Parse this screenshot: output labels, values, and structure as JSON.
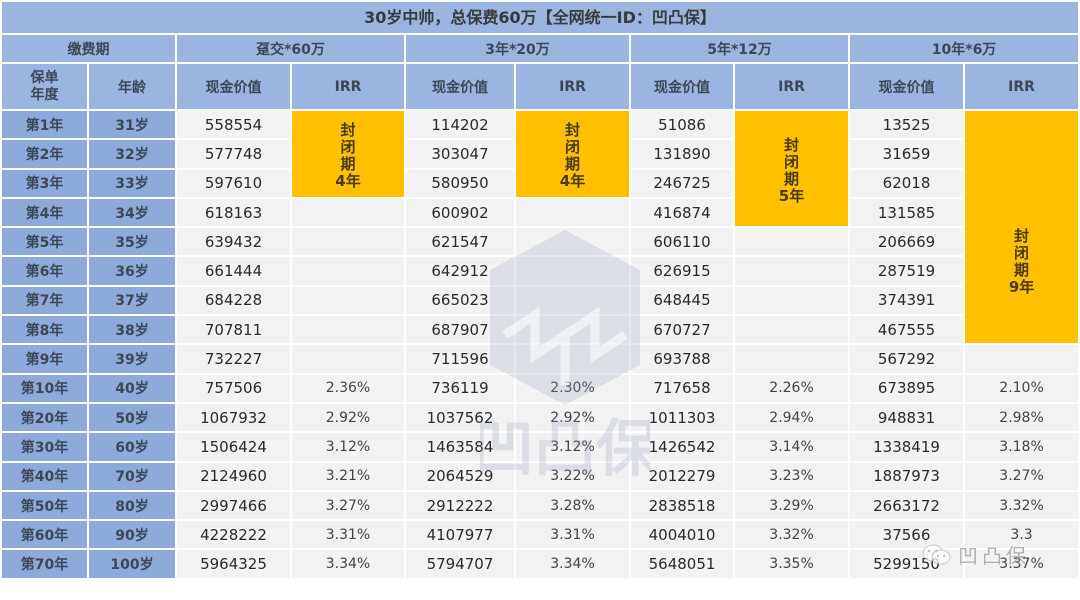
{
  "title": "30岁中帅，总保费60万【全网统一ID：凹凸保】",
  "header": {
    "payment_period_label": "缴费期",
    "policy_year_label": "保单\n年度",
    "age_label": "年龄",
    "plans": [
      {
        "name": "趸交*60万",
        "cash_value_label": "现金价值",
        "irr_label": "IRR"
      },
      {
        "name": "3年*20万",
        "cash_value_label": "现金价值",
        "irr_label": "IRR"
      },
      {
        "name": "5年*12万",
        "cash_value_label": "现金价值",
        "irr_label": "IRR"
      },
      {
        "name": "10年*6万",
        "cash_value_label": "现金价值",
        "irr_label": "IRR"
      }
    ]
  },
  "lockup_labels": {
    "plan0": [
      "封",
      "闭",
      "期",
      "4年"
    ],
    "plan1": [
      "封",
      "闭",
      "期",
      "4年"
    ],
    "plan2": [
      "封",
      "闭",
      "期",
      "5年"
    ],
    "plan3": [
      "封",
      "闭",
      "期",
      "9年"
    ]
  },
  "colors": {
    "header_bg": "#9bb5e0",
    "label_bg": "#8eaadb",
    "cell_bg": "#f2f2f2",
    "lockup_bg": "#ffc000"
  },
  "rows": [
    {
      "year": "第1年",
      "age": "31岁",
      "cv": [
        "558554",
        "114202",
        "51086",
        "13525"
      ],
      "irr": [
        "",
        "",
        "",
        ""
      ]
    },
    {
      "year": "第2年",
      "age": "32岁",
      "cv": [
        "577748",
        "303047",
        "131890",
        "31659"
      ],
      "irr": [
        "",
        "",
        "",
        ""
      ]
    },
    {
      "year": "第3年",
      "age": "33岁",
      "cv": [
        "597610",
        "580950",
        "246725",
        "62018"
      ],
      "irr": [
        "",
        "",
        "",
        ""
      ]
    },
    {
      "year": "第4年",
      "age": "34岁",
      "cv": [
        "618163",
        "600902",
        "416874",
        "131585"
      ],
      "irr": [
        "",
        "",
        "",
        ""
      ]
    },
    {
      "year": "第5年",
      "age": "35岁",
      "cv": [
        "639432",
        "621547",
        "606110",
        "206669"
      ],
      "irr": [
        "",
        "",
        "",
        ""
      ]
    },
    {
      "year": "第6年",
      "age": "36岁",
      "cv": [
        "661444",
        "642912",
        "626915",
        "287519"
      ],
      "irr": [
        "",
        "",
        "",
        ""
      ]
    },
    {
      "year": "第7年",
      "age": "37岁",
      "cv": [
        "684228",
        "665023",
        "648445",
        "374391"
      ],
      "irr": [
        "",
        "",
        "",
        ""
      ]
    },
    {
      "year": "第8年",
      "age": "38岁",
      "cv": [
        "707811",
        "687907",
        "670727",
        "467555"
      ],
      "irr": [
        "",
        "",
        "",
        ""
      ]
    },
    {
      "year": "第9年",
      "age": "39岁",
      "cv": [
        "732227",
        "711596",
        "693788",
        "567292"
      ],
      "irr": [
        "",
        "",
        "",
        ""
      ]
    },
    {
      "year": "第10年",
      "age": "40岁",
      "cv": [
        "757506",
        "736119",
        "717658",
        "673895"
      ],
      "irr": [
        "2.36%",
        "2.30%",
        "2.26%",
        "2.10%"
      ]
    },
    {
      "year": "第20年",
      "age": "50岁",
      "cv": [
        "1067932",
        "1037562",
        "1011303",
        "948831"
      ],
      "irr": [
        "2.92%",
        "2.92%",
        "2.94%",
        "2.98%"
      ]
    },
    {
      "year": "第30年",
      "age": "60岁",
      "cv": [
        "1506424",
        "1463584",
        "1426542",
        "1338419"
      ],
      "irr": [
        "3.12%",
        "3.12%",
        "3.14%",
        "3.18%"
      ]
    },
    {
      "year": "第40年",
      "age": "70岁",
      "cv": [
        "2124960",
        "2064529",
        "2012279",
        "1887973"
      ],
      "irr": [
        "3.21%",
        "3.22%",
        "3.23%",
        "3.27%"
      ]
    },
    {
      "year": "第50年",
      "age": "80岁",
      "cv": [
        "2997466",
        "2912222",
        "2838518",
        "2663172"
      ],
      "irr": [
        "3.27%",
        "3.28%",
        "3.29%",
        "3.32%"
      ]
    },
    {
      "year": "第60年",
      "age": "90岁",
      "cv": [
        "4228222",
        "4107977",
        "4004010",
        "37566"
      ],
      "irr": [
        "3.31%",
        "3.31%",
        "3.32%",
        "3.3"
      ]
    },
    {
      "year": "第70年",
      "age": "100岁",
      "cv": [
        "5964325",
        "5794707",
        "5648051",
        "5299150"
      ],
      "irr": [
        "3.34%",
        "3.34%",
        "3.35%",
        "3.37%"
      ]
    }
  ],
  "watermark": {
    "center_text": "凹凸保",
    "corner_text": "凹凸保",
    "corner_icon": "wechat-icon"
  }
}
